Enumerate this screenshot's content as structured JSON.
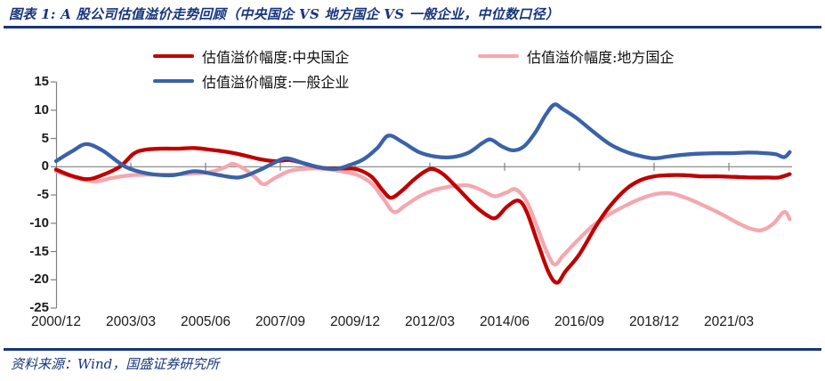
{
  "figure": {
    "label_and_title": "图表 1: A 股公司估值溢价走势回顾（中央国企 VS 地方国企 VS 一般企业，中位数口径）",
    "source": "资料来源：Wind，国盛证券研究所",
    "accent_color": "#17357E"
  },
  "chart_data": {
    "type": "line",
    "grid": false,
    "legend_position": "top-left two rows",
    "x_axis": {
      "start": "2000/12",
      "end_approx": "2023/01",
      "months_between_ticks": 27,
      "tick_labels": [
        "2000/12",
        "2003/03",
        "2005/06",
        "2007/09",
        "2009/12",
        "2012/03",
        "2014/06",
        "2016/09",
        "2018/12",
        "2021/03"
      ]
    },
    "y_axis": {
      "min": -25,
      "max": 15,
      "step": 5,
      "tick_labels": [
        "15",
        "10",
        "5",
        "0",
        "-5",
        "-10",
        "-15",
        "-20",
        "-25"
      ]
    },
    "axis_color": "#808080",
    "point_x_unit": "months since 2000/12",
    "series": [
      {
        "name": "估值溢价幅度:中央国企",
        "color": "#C00000",
        "points": [
          [
            0,
            -0.5
          ],
          [
            5,
            -1.5
          ],
          [
            11,
            -2.2
          ],
          [
            16,
            -1.6
          ],
          [
            23,
            0.0
          ],
          [
            28,
            2.3
          ],
          [
            32,
            3.0
          ],
          [
            38,
            3.2
          ],
          [
            44,
            3.2
          ],
          [
            50,
            3.3
          ],
          [
            56,
            3.0
          ],
          [
            62,
            2.6
          ],
          [
            68,
            2.0
          ],
          [
            74,
            1.3
          ],
          [
            79,
            1.0
          ],
          [
            84,
            1.2
          ],
          [
            88,
            0.8
          ],
          [
            93,
            0.1
          ],
          [
            98,
            -0.3
          ],
          [
            104,
            -0.3
          ],
          [
            109,
            -0.5
          ],
          [
            114,
            -1.8
          ],
          [
            118,
            -4.2
          ],
          [
            121,
            -5.5
          ],
          [
            125,
            -4.2
          ],
          [
            129,
            -2.4
          ],
          [
            133,
            -0.9
          ],
          [
            136,
            -0.4
          ],
          [
            140,
            -1.4
          ],
          [
            145,
            -3.8
          ],
          [
            151,
            -6.8
          ],
          [
            156,
            -8.7
          ],
          [
            159,
            -9.0
          ],
          [
            163,
            -7.0
          ],
          [
            167,
            -6.0
          ],
          [
            170,
            -8.0
          ],
          [
            174,
            -13.5
          ],
          [
            178,
            -18.8
          ],
          [
            181,
            -20.5
          ],
          [
            184,
            -18.5
          ],
          [
            189,
            -15.5
          ],
          [
            195,
            -10.5
          ],
          [
            200,
            -7.0
          ],
          [
            206,
            -3.9
          ],
          [
            211,
            -2.4
          ],
          [
            216,
            -1.7
          ],
          [
            221,
            -1.5
          ],
          [
            227,
            -1.5
          ],
          [
            233,
            -1.7
          ],
          [
            239,
            -1.7
          ],
          [
            245,
            -1.8
          ],
          [
            251,
            -1.9
          ],
          [
            257,
            -1.9
          ],
          [
            261,
            -1.9
          ],
          [
            265,
            -1.3
          ]
        ]
      },
      {
        "name": "估值溢价幅度:地方国企",
        "color": "#F5A7AE",
        "points": [
          [
            0,
            -0.8
          ],
          [
            7,
            -1.9
          ],
          [
            14,
            -2.6
          ],
          [
            20,
            -2.0
          ],
          [
            27,
            -1.5
          ],
          [
            34,
            -1.4
          ],
          [
            42,
            -1.4
          ],
          [
            50,
            -1.2
          ],
          [
            56,
            -0.9
          ],
          [
            61,
            -0.1
          ],
          [
            64,
            0.5
          ],
          [
            68,
            -0.4
          ],
          [
            72,
            -1.9
          ],
          [
            75,
            -3.1
          ],
          [
            79,
            -2.0
          ],
          [
            84,
            -0.8
          ],
          [
            89,
            -0.4
          ],
          [
            94,
            -0.3
          ],
          [
            99,
            -0.5
          ],
          [
            104,
            -0.9
          ],
          [
            109,
            -1.5
          ],
          [
            114,
            -3.0
          ],
          [
            118,
            -5.5
          ],
          [
            122,
            -8.0
          ],
          [
            126,
            -6.9
          ],
          [
            131,
            -5.3
          ],
          [
            136,
            -4.2
          ],
          [
            141,
            -3.6
          ],
          [
            146,
            -3.3
          ],
          [
            149,
            -3.3
          ],
          [
            153,
            -4.0
          ],
          [
            157,
            -5.0
          ],
          [
            159,
            -5.2
          ],
          [
            163,
            -4.5
          ],
          [
            166,
            -4.0
          ],
          [
            170,
            -6.2
          ],
          [
            174,
            -11.0
          ],
          [
            177,
            -14.8
          ],
          [
            180,
            -17.3
          ],
          [
            183,
            -15.8
          ],
          [
            188,
            -13.2
          ],
          [
            194,
            -10.4
          ],
          [
            200,
            -8.4
          ],
          [
            206,
            -6.8
          ],
          [
            212,
            -5.5
          ],
          [
            217,
            -4.8
          ],
          [
            222,
            -4.7
          ],
          [
            228,
            -5.6
          ],
          [
            234,
            -6.9
          ],
          [
            240,
            -8.3
          ],
          [
            246,
            -9.9
          ],
          [
            251,
            -11.0
          ],
          [
            255,
            -11.2
          ],
          [
            259,
            -10.1
          ],
          [
            263,
            -8.0
          ],
          [
            265,
            -9.3
          ]
        ]
      },
      {
        "name": "估值溢价幅度:一般企业",
        "color": "#3A62A8",
        "points": [
          [
            0,
            1.0
          ],
          [
            6,
            2.8
          ],
          [
            11,
            4.0
          ],
          [
            17,
            2.8
          ],
          [
            25,
            0.0
          ],
          [
            33,
            -1.2
          ],
          [
            42,
            -1.5
          ],
          [
            50,
            -0.8
          ],
          [
            58,
            -1.4
          ],
          [
            66,
            -1.9
          ],
          [
            73,
            -0.7
          ],
          [
            78,
            0.5
          ],
          [
            83,
            1.5
          ],
          [
            89,
            0.7
          ],
          [
            95,
            -0.1
          ],
          [
            101,
            -0.4
          ],
          [
            106,
            0.3
          ],
          [
            111,
            1.3
          ],
          [
            116,
            3.3
          ],
          [
            120,
            5.5
          ],
          [
            125,
            4.4
          ],
          [
            131,
            2.6
          ],
          [
            137,
            1.8
          ],
          [
            143,
            1.7
          ],
          [
            149,
            2.5
          ],
          [
            154,
            4.2
          ],
          [
            157,
            4.8
          ],
          [
            161,
            3.6
          ],
          [
            165,
            2.9
          ],
          [
            169,
            3.6
          ],
          [
            173,
            6.0
          ],
          [
            177,
            9.3
          ],
          [
            180,
            11.0
          ],
          [
            183,
            10.2
          ],
          [
            188,
            8.6
          ],
          [
            194,
            6.2
          ],
          [
            200,
            4.0
          ],
          [
            206,
            2.6
          ],
          [
            211,
            1.9
          ],
          [
            216,
            1.5
          ],
          [
            221,
            1.8
          ],
          [
            226,
            2.1
          ],
          [
            232,
            2.3
          ],
          [
            238,
            2.4
          ],
          [
            244,
            2.4
          ],
          [
            250,
            2.5
          ],
          [
            256,
            2.4
          ],
          [
            260,
            2.2
          ],
          [
            263,
            1.7
          ],
          [
            265,
            2.6
          ]
        ]
      }
    ]
  }
}
